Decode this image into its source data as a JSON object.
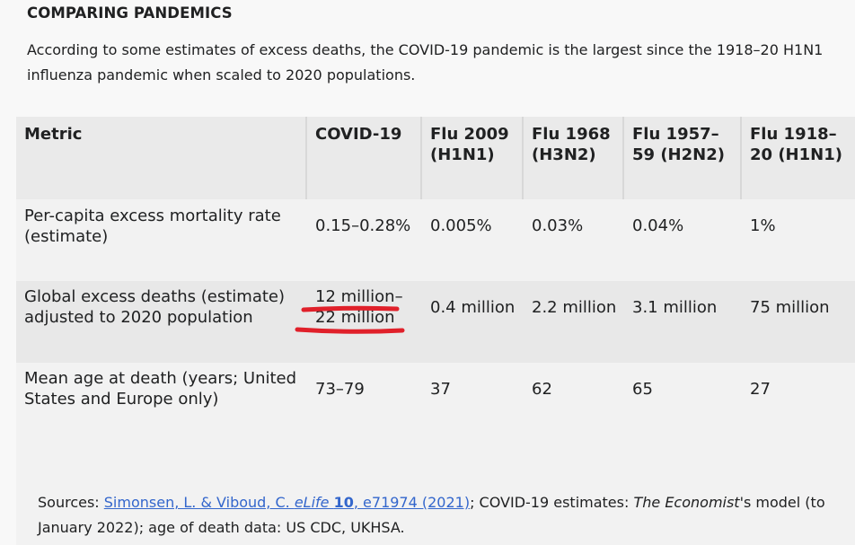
{
  "heading": "COMPARING PANDEMICS",
  "intro": "According to some estimates of excess deaths, the COVID-19 pandemic is the largest since the 1918–20 H1N1 influenza pandemic when scaled to 2020 populations.",
  "columns": [
    {
      "line1": "Metric",
      "line2": ""
    },
    {
      "line1": "COVID-19",
      "line2": ""
    },
    {
      "line1": "Flu 2009",
      "line2": "(H1N1)"
    },
    {
      "line1": "Flu 1968",
      "line2": "(H3N2)"
    },
    {
      "line1": "Flu 1957–",
      "line2": "59 (H2N2)"
    },
    {
      "line1": "Flu 1918–",
      "line2": "20 (H1N1)"
    }
  ],
  "rows": [
    {
      "metric_line1": "Per-capita excess mortality rate",
      "metric_line2": "(estimate)",
      "covid_line1": "0.15–0.28%",
      "covid_line2": "",
      "flu2009": "0.005%",
      "flu1968": "0.03%",
      "flu1957": "0.04%",
      "flu1918": "1%"
    },
    {
      "metric_line1": "Global excess deaths (estimate)",
      "metric_line2": "adjusted to 2020 population",
      "covid_line1": "12 million–",
      "covid_line2": "22 million",
      "flu2009": "0.4 million",
      "flu1968": "2.2 million",
      "flu1957": "3.1 million",
      "flu1918": "75 million"
    },
    {
      "metric_line1": "Mean age at death (years; United",
      "metric_line2": "States and Europe only)",
      "covid_line1": "73–79",
      "covid_line2": "",
      "flu2009": "37",
      "flu1968": "62",
      "flu1957": "65",
      "flu1918": "27"
    }
  ],
  "sources": {
    "prefix": "Sources: ",
    "link_authors": "Simonsen, L. & Viboud, C. ",
    "link_journal": "eLife",
    "link_space": " ",
    "link_volume": "10",
    "link_rest": ", e71974 (2021)",
    "mid1": "; COVID-19 estimates: ",
    "italic_source": "The Economist",
    "mid2": "'s model (to January 2022); age of death data: US CDC, UKHSA."
  },
  "colors": {
    "annotation_red": "#e0202a",
    "link_blue": "#3366cc"
  }
}
